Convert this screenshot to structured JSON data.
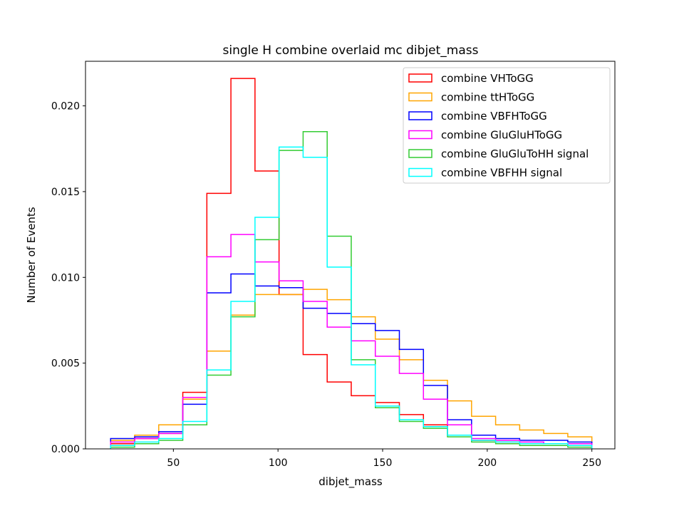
{
  "chart_data": {
    "type": "step-histogram",
    "title": "single H combine overlaid mc dibjet_mass",
    "xlabel": "dibjet_mass",
    "ylabel": "Number of Events",
    "xlim": [
      8,
      261
    ],
    "ylim": [
      0,
      0.0226
    ],
    "xticks": [
      50,
      100,
      150,
      200,
      250
    ],
    "yticks": [
      0.0,
      0.005,
      0.01,
      0.015,
      0.02
    ],
    "ytick_labels": [
      "0.000",
      "0.005",
      "0.010",
      "0.015",
      "0.020"
    ],
    "legend_position": "top-right",
    "bin_edges": [
      20,
      31.5,
      43,
      54.5,
      66,
      77.5,
      89,
      100.5,
      112,
      123.5,
      135,
      146.5,
      158,
      169.5,
      181,
      192.5,
      204,
      215.5,
      227,
      238.5,
      250
    ],
    "series": [
      {
        "name": "combine VHToGG",
        "color": "#ff0000",
        "values": [
          0.0003,
          0.0006,
          0.0009,
          0.0033,
          0.0149,
          0.0216,
          0.0162,
          0.009,
          0.0055,
          0.0039,
          0.0031,
          0.0027,
          0.002,
          0.0014,
          0.0008,
          0.0005,
          0.0004,
          0.0003,
          0.0003,
          0.0002
        ]
      },
      {
        "name": "combine ttHToGG",
        "color": "#ffa500",
        "values": [
          0.0005,
          0.0008,
          0.0014,
          0.0029,
          0.0057,
          0.0078,
          0.009,
          0.009,
          0.0093,
          0.0087,
          0.0077,
          0.0064,
          0.0052,
          0.004,
          0.0028,
          0.0019,
          0.0014,
          0.0011,
          0.0009,
          0.0007
        ]
      },
      {
        "name": "combine VBFHToGG",
        "color": "#0000ff",
        "values": [
          0.0006,
          0.0007,
          0.001,
          0.0026,
          0.0091,
          0.0102,
          0.0095,
          0.0094,
          0.0082,
          0.0079,
          0.0073,
          0.0069,
          0.0058,
          0.0037,
          0.0017,
          0.0008,
          0.0006,
          0.0005,
          0.0005,
          0.0004
        ]
      },
      {
        "name": "combine GluGluHToGG",
        "color": "#ff00ff",
        "values": [
          0.0004,
          0.0006,
          0.0009,
          0.003,
          0.0112,
          0.0125,
          0.0109,
          0.0098,
          0.0086,
          0.0071,
          0.0063,
          0.0054,
          0.0044,
          0.0029,
          0.0014,
          0.0006,
          0.0005,
          0.0004,
          0.0003,
          0.0003
        ]
      },
      {
        "name": "combine GluGluToHH signal",
        "color": "#33cc33",
        "values": [
          0.0001,
          0.0003,
          0.0005,
          0.0014,
          0.0043,
          0.0077,
          0.0122,
          0.0174,
          0.0185,
          0.0124,
          0.0052,
          0.0024,
          0.0016,
          0.0012,
          0.0007,
          0.0004,
          0.0003,
          0.0002,
          0.0002,
          0.0001
        ]
      },
      {
        "name": "combine VBFHH signal",
        "color": "#00ffff",
        "values": [
          0.0002,
          0.0004,
          0.0006,
          0.0016,
          0.0046,
          0.0086,
          0.0135,
          0.0176,
          0.017,
          0.0106,
          0.0049,
          0.0025,
          0.0017,
          0.0013,
          0.0008,
          0.0005,
          0.0004,
          0.0003,
          0.0003,
          0.0002
        ]
      }
    ]
  }
}
